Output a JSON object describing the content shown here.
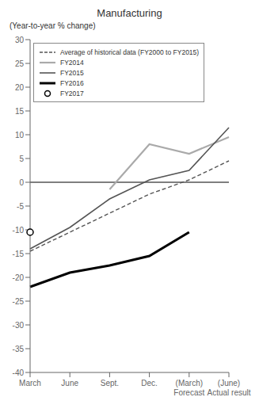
{
  "chart_data": {
    "type": "line",
    "title": "Manufacturing",
    "ylabel": "(Year-to-year % change)",
    "categories": [
      "March",
      "June",
      "Sept.",
      "Dec.",
      "(March)\nForecast",
      "(June)\nActual result"
    ],
    "series": [
      {
        "name": "Average of historical data (FY2000 to FY2015)",
        "color": "#555555",
        "line_style": "dashed",
        "values": [
          -14.5,
          -10.5,
          -6.5,
          -2.5,
          0.5,
          4.5
        ]
      },
      {
        "name": "FY2014",
        "color": "#aaaaaa",
        "line_style": "solid",
        "values": [
          null,
          null,
          -1.5,
          8.0,
          6.0,
          9.5
        ]
      },
      {
        "name": "FY2015",
        "color": "#555555",
        "line_style": "solid",
        "values": [
          -14.0,
          -9.5,
          -3.5,
          0.5,
          2.5,
          11.5
        ]
      },
      {
        "name": "FY2016",
        "color": "#000000",
        "line_style": "solid",
        "values": [
          -22.0,
          -19.0,
          -17.5,
          -15.5,
          -10.5,
          null
        ]
      },
      {
        "name": "FY2017",
        "color": "#000000",
        "line_style": "none",
        "marker": "open_circle",
        "values": [
          -10.5,
          null,
          null,
          null,
          null,
          null
        ]
      }
    ],
    "ylim": [
      -40,
      30
    ],
    "yticks": [
      -40,
      -35,
      -30,
      -25,
      -20,
      -15,
      -10,
      -5,
      0,
      5,
      10,
      15,
      20,
      25,
      30
    ],
    "hline": {
      "y": 0,
      "color": "#000000"
    },
    "grid": false,
    "legend": "upper left"
  }
}
